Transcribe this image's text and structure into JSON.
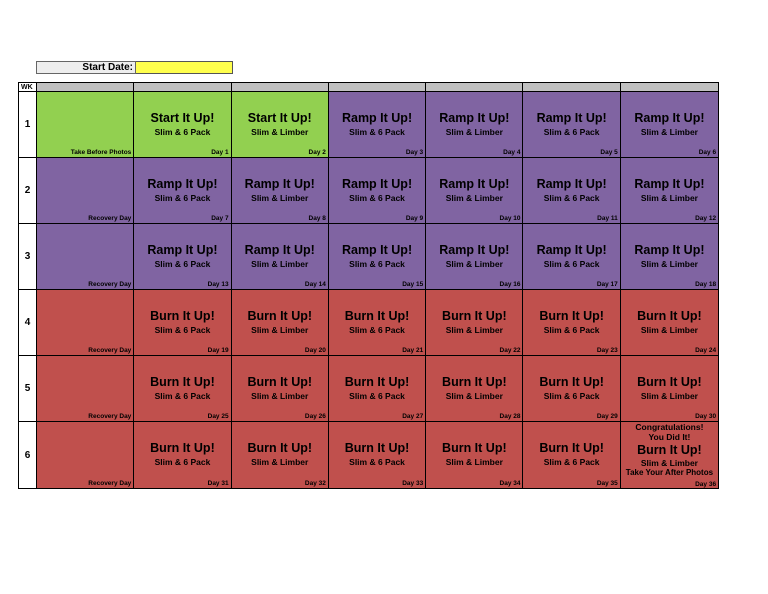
{
  "header": {
    "start_date_label": "Start Date:",
    "start_date_value": "",
    "wk_label": "WK"
  },
  "colors": {
    "start": "#92d050",
    "ramp": "#8064a2",
    "burn": "#c0504d",
    "input": "#ffff4d",
    "header": "#c0c0c0"
  },
  "weeks": [
    {
      "wk": "1",
      "cells": [
        {
          "color": "g",
          "note": "Take Before Photos"
        },
        {
          "color": "g",
          "title": "Start It Up!",
          "sub": "Slim & 6 Pack",
          "day": "Day 1"
        },
        {
          "color": "g",
          "title": "Start It Up!",
          "sub": "Slim & Limber",
          "day": "Day 2"
        },
        {
          "color": "p",
          "title": "Ramp It Up!",
          "sub": "Slim & 6 Pack",
          "day": "Day 3"
        },
        {
          "color": "p",
          "title": "Ramp It Up!",
          "sub": "Slim & Limber",
          "day": "Day 4"
        },
        {
          "color": "p",
          "title": "Ramp It Up!",
          "sub": "Slim & 6 Pack",
          "day": "Day 5"
        },
        {
          "color": "p",
          "title": "Ramp It Up!",
          "sub": "Slim & Limber",
          "day": "Day 6"
        }
      ]
    },
    {
      "wk": "2",
      "cells": [
        {
          "color": "p",
          "note": "Recovery Day"
        },
        {
          "color": "p",
          "title": "Ramp It Up!",
          "sub": "Slim & 6 Pack",
          "day": "Day 7"
        },
        {
          "color": "p",
          "title": "Ramp It Up!",
          "sub": "Slim & Limber",
          "day": "Day 8"
        },
        {
          "color": "p",
          "title": "Ramp It Up!",
          "sub": "Slim & 6 Pack",
          "day": "Day 9"
        },
        {
          "color": "p",
          "title": "Ramp It Up!",
          "sub": "Slim & Limber",
          "day": "Day 10"
        },
        {
          "color": "p",
          "title": "Ramp It Up!",
          "sub": "Slim & 6 Pack",
          "day": "Day 11"
        },
        {
          "color": "p",
          "title": "Ramp It Up!",
          "sub": "Slim & Limber",
          "day": "Day 12"
        }
      ]
    },
    {
      "wk": "3",
      "cells": [
        {
          "color": "p",
          "note": "Recovery Day"
        },
        {
          "color": "p",
          "title": "Ramp It Up!",
          "sub": "Slim & 6 Pack",
          "day": "Day 13"
        },
        {
          "color": "p",
          "title": "Ramp It Up!",
          "sub": "Slim & Limber",
          "day": "Day 14"
        },
        {
          "color": "p",
          "title": "Ramp It Up!",
          "sub": "Slim & 6 Pack",
          "day": "Day 15"
        },
        {
          "color": "p",
          "title": "Ramp It Up!",
          "sub": "Slim & Limber",
          "day": "Day 16"
        },
        {
          "color": "p",
          "title": "Ramp It Up!",
          "sub": "Slim & 6 Pack",
          "day": "Day 17"
        },
        {
          "color": "p",
          "title": "Ramp It Up!",
          "sub": "Slim & Limber",
          "day": "Day 18"
        }
      ]
    },
    {
      "wk": "4",
      "cells": [
        {
          "color": "r",
          "note": "Recovery Day"
        },
        {
          "color": "r",
          "title": "Burn It Up!",
          "sub": "Slim & 6 Pack",
          "day": "Day 19"
        },
        {
          "color": "r",
          "title": "Burn It Up!",
          "sub": "Slim & Limber",
          "day": "Day 20"
        },
        {
          "color": "r",
          "title": "Burn It Up!",
          "sub": "Slim & 6 Pack",
          "day": "Day 21"
        },
        {
          "color": "r",
          "title": "Burn It Up!",
          "sub": "Slim & Limber",
          "day": "Day 22"
        },
        {
          "color": "r",
          "title": "Burn It Up!",
          "sub": "Slim & 6 Pack",
          "day": "Day 23"
        },
        {
          "color": "r",
          "title": "Burn It Up!",
          "sub": "Slim & Limber",
          "day": "Day 24"
        }
      ]
    },
    {
      "wk": "5",
      "cells": [
        {
          "color": "r",
          "note": "Recovery Day"
        },
        {
          "color": "r",
          "title": "Burn It Up!",
          "sub": "Slim & 6 Pack",
          "day": "Day 25"
        },
        {
          "color": "r",
          "title": "Burn It Up!",
          "sub": "Slim & Limber",
          "day": "Day 26"
        },
        {
          "color": "r",
          "title": "Burn It Up!",
          "sub": "Slim & 6 Pack",
          "day": "Day 27"
        },
        {
          "color": "r",
          "title": "Burn It Up!",
          "sub": "Slim & Limber",
          "day": "Day 28"
        },
        {
          "color": "r",
          "title": "Burn It Up!",
          "sub": "Slim & 6 Pack",
          "day": "Day 29"
        },
        {
          "color": "r",
          "title": "Burn It Up!",
          "sub": "Slim & Limber",
          "day": "Day 30"
        }
      ]
    },
    {
      "wk": "6",
      "cells": [
        {
          "color": "r",
          "note": "Recovery Day"
        },
        {
          "color": "r",
          "title": "Burn It Up!",
          "sub": "Slim & 6 Pack",
          "day": "Day 31"
        },
        {
          "color": "r",
          "title": "Burn It Up!",
          "sub": "Slim & Limber",
          "day": "Day 32"
        },
        {
          "color": "r",
          "title": "Burn It Up!",
          "sub": "Slim & 6 Pack",
          "day": "Day 33"
        },
        {
          "color": "r",
          "title": "Burn It Up!",
          "sub": "Slim & Limber",
          "day": "Day 34"
        },
        {
          "color": "r",
          "title": "Burn It Up!",
          "sub": "Slim & 6 Pack",
          "day": "Day 35"
        },
        {
          "color": "r",
          "final": true,
          "congrats1": "Congratulations!",
          "congrats2": "You Did It!",
          "title": "Burn It Up!",
          "sub": "Slim & Limber",
          "after": "Take Your After Photos",
          "day": "Day 36"
        }
      ]
    }
  ]
}
